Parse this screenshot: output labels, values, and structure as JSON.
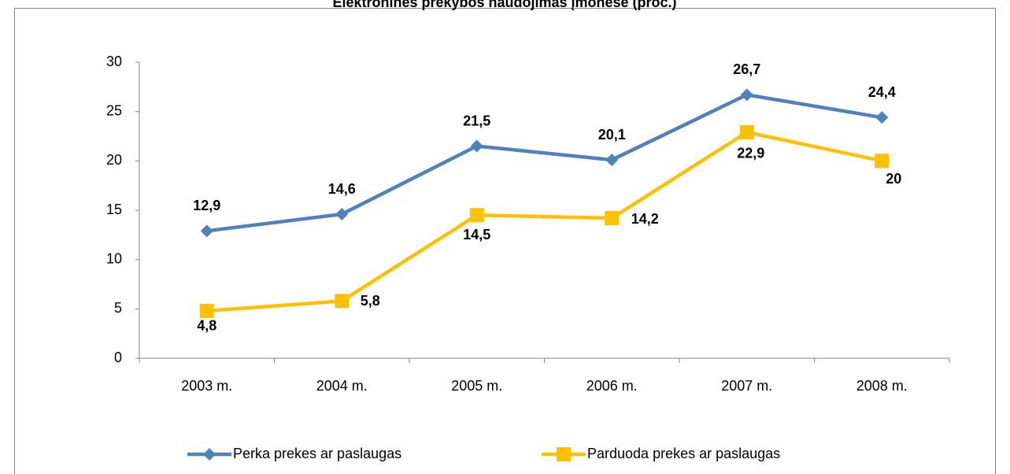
{
  "chart_data": {
    "type": "line",
    "title": "Elektroninės prekybos naudojimas įmonėse (proc.)",
    "categories": [
      "2003 m.",
      "2004 m.",
      "2005 m.",
      "2006 m.",
      "2007 m.",
      "2008 m."
    ],
    "series": [
      {
        "name": "Perka prekes ar paslaugas",
        "color": "#4f81bd",
        "marker": "diamond",
        "values": [
          12.9,
          14.6,
          21.5,
          20.1,
          26.7,
          24.4
        ],
        "value_labels": [
          "12,9",
          "14,6",
          "21,5",
          "20,1",
          "26,7",
          "24,4"
        ]
      },
      {
        "name": "Parduoda prekes ar paslaugas",
        "color": "#ffc000",
        "marker": "square",
        "values": [
          4.8,
          5.8,
          14.5,
          14.2,
          22.9,
          20
        ],
        "value_labels": [
          "4,8",
          "5,8",
          "14,5",
          "14,2",
          "22,9",
          "20"
        ]
      }
    ],
    "ylim": [
      0,
      30
    ],
    "yticks": [
      0,
      5,
      10,
      15,
      20,
      25,
      30
    ],
    "legend": "bottom"
  }
}
